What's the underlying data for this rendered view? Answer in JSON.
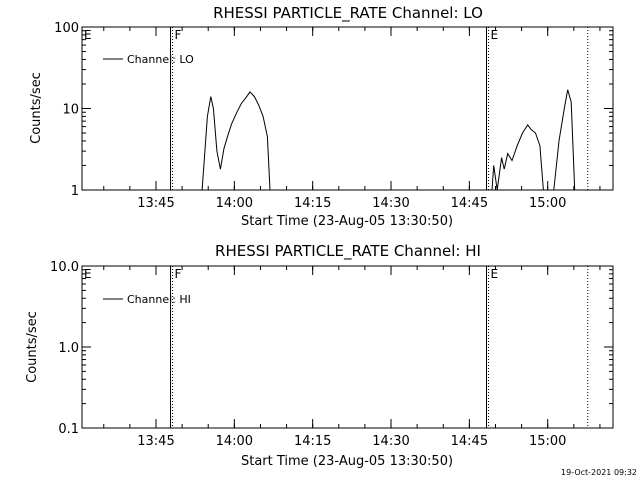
{
  "timestamp": "19-Oct-2021 09:32",
  "chart_data": [
    {
      "type": "line",
      "title": "RHESSI PARTICLE_RATE Channel: LO",
      "xlabel": "Start Time (23-Aug-05 13:30:50)",
      "ylabel": "Counts/sec",
      "y_scale": "log",
      "ylim": [
        1,
        100
      ],
      "xlim": [
        "13:30:50",
        "15:12:30"
      ],
      "x_ticks": [
        "13:45",
        "14:00",
        "14:15",
        "14:30",
        "14:45",
        "15:00"
      ],
      "y_ticks": [
        "1",
        "10",
        "100"
      ],
      "legend": {
        "label": "Channel: LO",
        "placement": "top-left"
      },
      "markers": [
        {
          "label": "E",
          "time": "13:30:50",
          "style": "solid"
        },
        {
          "label": "F",
          "time": "13:48:10",
          "style": "dotted"
        },
        {
          "label": "E",
          "time": "14:48:40",
          "style": "dotted"
        },
        {
          "label": "",
          "time": "15:07:40",
          "style": "dotted"
        }
      ],
      "series": [
        {
          "name": "Channel: LO",
          "points": [
            [
              "13:53:50",
              1.0
            ],
            [
              "13:54:50",
              8.0
            ],
            [
              "13:55:30",
              14.0
            ],
            [
              "13:56:00",
              10.0
            ],
            [
              "13:56:40",
              3.0
            ],
            [
              "13:57:20",
              1.8
            ],
            [
              "13:58:00",
              3.2
            ],
            [
              "13:58:40",
              4.5
            ],
            [
              "13:59:30",
              6.5
            ],
            [
              "14:00:30",
              9.0
            ],
            [
              "14:01:20",
              11.5
            ],
            [
              "14:02:10",
              13.5
            ],
            [
              "14:03:00",
              16.0
            ],
            [
              "14:03:50",
              14.0
            ],
            [
              "14:04:40",
              11.0
            ],
            [
              "14:05:30",
              8.0
            ],
            [
              "14:06:20",
              4.5
            ],
            [
              "14:06:50",
              1.0
            ]
          ]
        },
        {
          "name": "Channel: LO",
          "points": [
            [
              "14:49:20",
              1.0
            ],
            [
              "14:49:40",
              2.0
            ],
            [
              "14:50:20",
              1.0
            ],
            [
              "14:51:10",
              2.5
            ],
            [
              "14:51:40",
              1.8
            ],
            [
              "14:52:20",
              2.8
            ],
            [
              "14:53:10",
              2.3
            ],
            [
              "14:54:10",
              3.5
            ],
            [
              "14:55:10",
              5.0
            ],
            [
              "14:56:10",
              6.3
            ],
            [
              "14:56:50",
              5.5
            ],
            [
              "14:57:40",
              5.0
            ],
            [
              "14:58:30",
              3.5
            ],
            [
              "14:59:10",
              1.0
            ]
          ]
        },
        {
          "name": "Channel: LO",
          "points": [
            [
              "15:01:10",
              1.0
            ],
            [
              "15:02:10",
              4.0
            ],
            [
              "15:03:10",
              10.0
            ],
            [
              "15:03:50",
              17.0
            ],
            [
              "15:04:30",
              12.0
            ],
            [
              "15:05:10",
              1.0
            ]
          ]
        }
      ]
    },
    {
      "type": "line",
      "title": "RHESSI PARTICLE_RATE Channel: HI",
      "xlabel": "Start Time (23-Aug-05 13:30:50)",
      "ylabel": "Counts/sec",
      "y_scale": "log",
      "ylim": [
        0.1,
        10
      ],
      "xlim": [
        "13:30:50",
        "15:12:30"
      ],
      "x_ticks": [
        "13:45",
        "14:00",
        "14:15",
        "14:30",
        "14:45",
        "15:00"
      ],
      "y_ticks": [
        "0.1",
        "1.0",
        "10.0"
      ],
      "legend": {
        "label": "Channel: HI",
        "placement": "top-left"
      },
      "markers": [
        {
          "label": "E",
          "time": "13:30:50",
          "style": "solid"
        },
        {
          "label": "F",
          "time": "13:48:10",
          "style": "dotted"
        },
        {
          "label": "E",
          "time": "14:48:40",
          "style": "dotted"
        },
        {
          "label": "",
          "time": "15:07:40",
          "style": "dotted"
        }
      ],
      "series": []
    }
  ]
}
